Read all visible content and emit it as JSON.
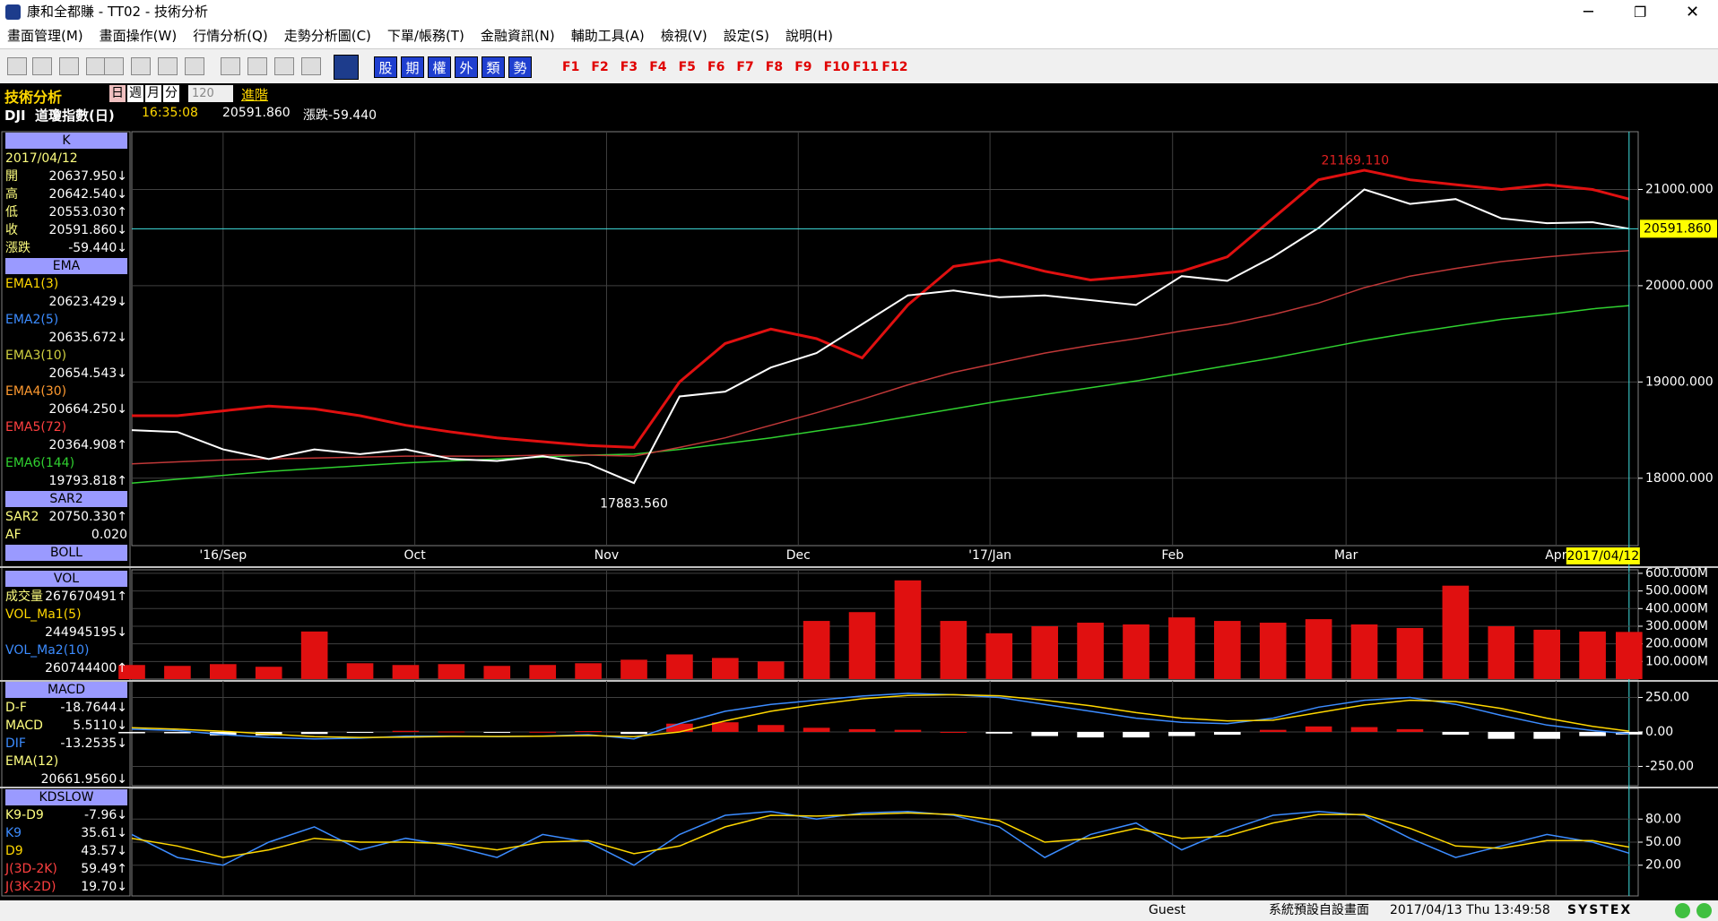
{
  "window": {
    "title": "康和全都賺 - TT02 - 技術分析",
    "menu": [
      "畫面管理(M)",
      "畫面操作(W)",
      "行情分析(Q)",
      "走勢分析圖(C)",
      "下單/帳務(T)",
      "金融資訊(N)",
      "輔助工具(A)",
      "檢視(V)",
      "設定(S)",
      "說明(H)"
    ]
  },
  "toolbar": {
    "buttons": [
      "股",
      "期",
      "權",
      "外",
      "類",
      "勢"
    ],
    "fkeys": [
      "F1",
      "F2",
      "F3",
      "F4",
      "F5",
      "F6",
      "F7",
      "F8",
      "F9",
      "F10",
      "F11",
      "F12"
    ]
  },
  "header": {
    "title": "技術分析",
    "periods": [
      "日",
      "週",
      "月",
      "分"
    ],
    "count": "120",
    "advanced": "進階",
    "symbol": "DJI  道瓊指數(日)",
    "time": "16:35:08",
    "price": "20591.860",
    "change": "漲跌-59.440"
  },
  "side_panels": [
    {
      "title": "K",
      "rows": [
        {
          "label": "2017/04/12"
        },
        {
          "label": "開",
          "value": "20637.950↓"
        },
        {
          "label": "高",
          "value": "20642.540↓"
        },
        {
          "label": "低",
          "value": "20553.030↑"
        },
        {
          "label": "收",
          "value": "20591.860↓"
        },
        {
          "label": "漲跌",
          "value": "-59.440↓"
        }
      ]
    },
    {
      "title": "EMA",
      "rows": [
        {
          "label": "EMA1(3)",
          "value": "20623.429↓",
          "color": "#ffd700"
        },
        {
          "label": "EMA2(5)",
          "value": "20635.672↓",
          "color": "#3c8cff"
        },
        {
          "label": "EMA3(10)",
          "value": "20654.543↓",
          "color": "#d0d040"
        },
        {
          "label": "EMA4(30)",
          "value": "20664.250↓",
          "color": "#ff9a30"
        },
        {
          "label": "EMA5(72)",
          "value": "20364.908↑",
          "color": "#ff4040"
        },
        {
          "label": "EMA6(144)",
          "value": "19793.818↑",
          "color": "#30d030"
        }
      ]
    },
    {
      "title": "SAR2",
      "rows": [
        {
          "label": "SAR2",
          "value": "20750.330↑"
        },
        {
          "label": "AF",
          "value": "0.020"
        }
      ]
    },
    {
      "title": "BOLL",
      "rows": []
    },
    {
      "title": "VOL",
      "rows": [
        {
          "label": "成交量",
          "value": "267670491↑"
        },
        {
          "label": "VOL_Ma1(5)",
          "value": "244945195↓",
          "color": "#ffd700"
        },
        {
          "label": "VOL_Ma2(10)",
          "value": "260744400↑",
          "color": "#3c8cff"
        }
      ]
    },
    {
      "title": "MACD",
      "rows": [
        {
          "label": "D-F",
          "value": "-18.7644↓"
        },
        {
          "label": "MACD",
          "value": "5.5110↓"
        },
        {
          "label": "DIF",
          "value": "-13.2535↓",
          "color": "#3c8cff"
        },
        {
          "label": "EMA(12)",
          "value": "20661.9560↓"
        }
      ]
    },
    {
      "title": "KDSLOW",
      "rows": [
        {
          "label": "K9-D9",
          "value": "-7.96↓"
        },
        {
          "label": "K9",
          "value": "35.61↓",
          "color": "#3c8cff"
        },
        {
          "label": "D9",
          "value": "43.57↓",
          "color": "#ffd700"
        },
        {
          "label": "J(3D-2K)",
          "value": "59.49↑",
          "color": "#ff4040"
        },
        {
          "label": "J(3K-2D)",
          "value": "19.70↓",
          "color": "#ff4040"
        }
      ]
    }
  ],
  "chart_data": [
    {
      "type": "line",
      "x": [
        0,
        5,
        10,
        15,
        20,
        25,
        30,
        35,
        40,
        45,
        50,
        55,
        60,
        65,
        70,
        75,
        80,
        85,
        90,
        95,
        100,
        105,
        110,
        115,
        120,
        125,
        130,
        135,
        140,
        145,
        150,
        155,
        160,
        164
      ],
      "xlim": [
        0,
        165
      ],
      "xticks": [
        {
          "value": 10,
          "label": "'16/Sep"
        },
        {
          "value": 31,
          "label": "Oct"
        },
        {
          "value": 52,
          "label": "Nov"
        },
        {
          "value": 73,
          "label": "Dec"
        },
        {
          "value": 94,
          "label": "'17/Jan"
        },
        {
          "value": 114,
          "label": "Feb"
        },
        {
          "value": 133,
          "label": "Mar"
        },
        {
          "value": 156,
          "label": "Apr"
        }
      ],
      "ylim": [
        17300,
        21600
      ],
      "yticks": [
        {
          "value": 18000,
          "label": "18000.000"
        },
        {
          "value": 19000,
          "label": "19000.000"
        },
        {
          "value": 20000,
          "label": "20000.000"
        },
        {
          "value": 21000,
          "label": "21000.000"
        }
      ],
      "grid": true,
      "series": [
        {
          "color": "#30d030",
          "width": 1.5,
          "values": [
            17950,
            17990,
            18030,
            18070,
            18100,
            18130,
            18160,
            18180,
            18200,
            18220,
            18240,
            18250,
            18300,
            18360,
            18420,
            18490,
            18560,
            18640,
            18720,
            18800,
            18870,
            18940,
            19010,
            19090,
            19170,
            19250,
            19340,
            19430,
            19510,
            19580,
            19650,
            19700,
            19760,
            19793.818
          ]
        },
        {
          "color": "#c03838",
          "width": 1.5,
          "values": [
            18150,
            18170,
            18190,
            18200,
            18210,
            18220,
            18230,
            18230,
            18230,
            18240,
            18240,
            18230,
            18320,
            18420,
            18550,
            18680,
            18820,
            18970,
            19100,
            19200,
            19300,
            19380,
            19450,
            19530,
            19600,
            19700,
            19820,
            19980,
            20100,
            20180,
            20250,
            20300,
            20340,
            20364.908
          ]
        },
        {
          "color": "#e01010",
          "width": 3,
          "values": [
            18650,
            18650,
            18700,
            18750,
            18720,
            18650,
            18550,
            18480,
            18420,
            18380,
            18340,
            18320,
            19000,
            19400,
            19550,
            19450,
            19250,
            19800,
            20200,
            20270,
            20150,
            20060,
            20100,
            20150,
            20300,
            20700,
            21100,
            21200,
            21100,
            21050,
            21000,
            21050,
            21000,
            20900
          ]
        },
        {
          "color": "#ffffff",
          "width": 2,
          "values": [
            18500,
            18480,
            18300,
            18200,
            18300,
            18250,
            18300,
            18200,
            18180,
            18230,
            18150,
            17950,
            18850,
            18900,
            19150,
            19300,
            19600,
            19900,
            19950,
            19880,
            19900,
            19850,
            19800,
            20100,
            20050,
            20300,
            20600,
            21000,
            20850,
            20900,
            20700,
            20650,
            20660,
            20591.86
          ]
        }
      ],
      "price_line": {
        "value": 20591.86,
        "label": "20591.860"
      },
      "cursor_date": "2017/04/12",
      "annotations": [
        {
          "label": "21169.110",
          "x": 134,
          "y": 21169.11,
          "color": "#e02020"
        },
        {
          "label": "17883.560",
          "x": 55,
          "y": 17883.56,
          "color": "#ffffff"
        }
      ]
    },
    {
      "type": "bar",
      "x": [
        0,
        5,
        10,
        15,
        20,
        25,
        30,
        35,
        40,
        45,
        50,
        55,
        60,
        65,
        70,
        75,
        80,
        85,
        90,
        95,
        100,
        105,
        110,
        115,
        120,
        125,
        130,
        135,
        140,
        145,
        150,
        155,
        160,
        164
      ],
      "xlim": [
        0,
        165
      ],
      "ylim": [
        0,
        620000000
      ],
      "yticks": [
        {
          "value": 100000000,
          "label": "100.000M"
        },
        {
          "value": 200000000,
          "label": "200.000M"
        },
        {
          "value": 300000000,
          "label": "300.000M"
        },
        {
          "value": 400000000,
          "label": "400.000M"
        },
        {
          "value": 500000000,
          "label": "500.000M"
        },
        {
          "value": 600000000,
          "label": "600.000M"
        }
      ],
      "grid": true,
      "series": [
        {
          "type": "bar",
          "color": "#e01010",
          "values": [
            80000000,
            75000000,
            85000000,
            70000000,
            270000000,
            90000000,
            80000000,
            85000000,
            75000000,
            80000000,
            90000000,
            110000000,
            140000000,
            120000000,
            100000000,
            330000000,
            380000000,
            560000000,
            330000000,
            260000000,
            300000000,
            320000000,
            310000000,
            350000000,
            330000000,
            320000000,
            340000000,
            310000000,
            290000000,
            530000000,
            300000000,
            280000000,
            270000000,
            267670491
          ]
        }
      ]
    },
    {
      "type": "combo",
      "x": [
        0,
        5,
        10,
        15,
        20,
        25,
        30,
        35,
        40,
        45,
        50,
        55,
        60,
        65,
        70,
        75,
        80,
        85,
        90,
        95,
        100,
        105,
        110,
        115,
        120,
        125,
        130,
        135,
        140,
        145,
        150,
        155,
        160,
        164
      ],
      "xlim": [
        0,
        165
      ],
      "ylim": [
        -390,
        370
      ],
      "yticks": [
        {
          "value": -250,
          "label": "-250.00"
        },
        {
          "value": 0,
          "label": "0.00"
        },
        {
          "value": 250,
          "label": "250.00"
        }
      ],
      "grid": true,
      "series": [
        {
          "type": "bar",
          "color": "#e01010",
          "negative_color": "#ffffff",
          "values": [
            -10,
            -10,
            -25,
            -25,
            -15,
            -5,
            8,
            3,
            -2,
            1,
            6,
            -15,
            60,
            70,
            50,
            30,
            20,
            15,
            0,
            -12,
            -30,
            -40,
            -40,
            -30,
            -20,
            15,
            40,
            35,
            20,
            -20,
            -50,
            -50,
            -30,
            -18.7644
          ]
        },
        {
          "type": "line",
          "color": "#3c8cff",
          "values": [
            20,
            10,
            -20,
            -40,
            -50,
            -45,
            -30,
            -30,
            -35,
            -30,
            -20,
            -50,
            60,
            150,
            200,
            230,
            260,
            280,
            270,
            250,
            200,
            150,
            100,
            70,
            60,
            100,
            180,
            230,
            250,
            200,
            120,
            50,
            10,
            -13.2535
          ]
        },
        {
          "type": "line",
          "color": "#ffd700",
          "values": [
            30,
            20,
            5,
            -15,
            -35,
            -40,
            -38,
            -33,
            -33,
            -31,
            -26,
            -35,
            0,
            80,
            150,
            200,
            240,
            265,
            270,
            262,
            230,
            190,
            140,
            100,
            80,
            85,
            140,
            195,
            230,
            220,
            170,
            100,
            40,
            5.511
          ]
        }
      ]
    },
    {
      "type": "line",
      "x": [
        0,
        5,
        10,
        15,
        20,
        25,
        30,
        35,
        40,
        45,
        50,
        55,
        60,
        65,
        70,
        75,
        80,
        85,
        90,
        95,
        100,
        105,
        110,
        115,
        120,
        125,
        130,
        135,
        140,
        145,
        150,
        155,
        160,
        164
      ],
      "xlim": [
        0,
        165
      ],
      "ylim": [
        -20,
        120
      ],
      "yticks": [
        {
          "value": 20,
          "label": "20.00"
        },
        {
          "value": 50,
          "label": "50.00"
        },
        {
          "value": 80,
          "label": "80.00"
        }
      ],
      "grid": true,
      "series": [
        {
          "color": "#3c8cff",
          "width": 1.5,
          "values": [
            60,
            30,
            20,
            50,
            70,
            40,
            55,
            45,
            30,
            60,
            50,
            20,
            60,
            85,
            90,
            80,
            88,
            90,
            85,
            70,
            30,
            60,
            75,
            40,
            65,
            85,
            90,
            85,
            55,
            30,
            45,
            60,
            50,
            35.61
          ]
        },
        {
          "color": "#ffd700",
          "width": 1.5,
          "values": [
            55,
            45,
            30,
            40,
            55,
            50,
            50,
            48,
            40,
            50,
            52,
            35,
            45,
            70,
            85,
            84,
            86,
            88,
            86,
            78,
            50,
            55,
            68,
            55,
            58,
            75,
            86,
            86,
            68,
            45,
            42,
            52,
            52,
            43.57
          ]
        }
      ]
    }
  ],
  "status": {
    "user": "Guest",
    "layout": "系統預設自設畫面",
    "datetime": "2017/04/13 Thu 13:49:58",
    "brand": "SYSTEX"
  }
}
